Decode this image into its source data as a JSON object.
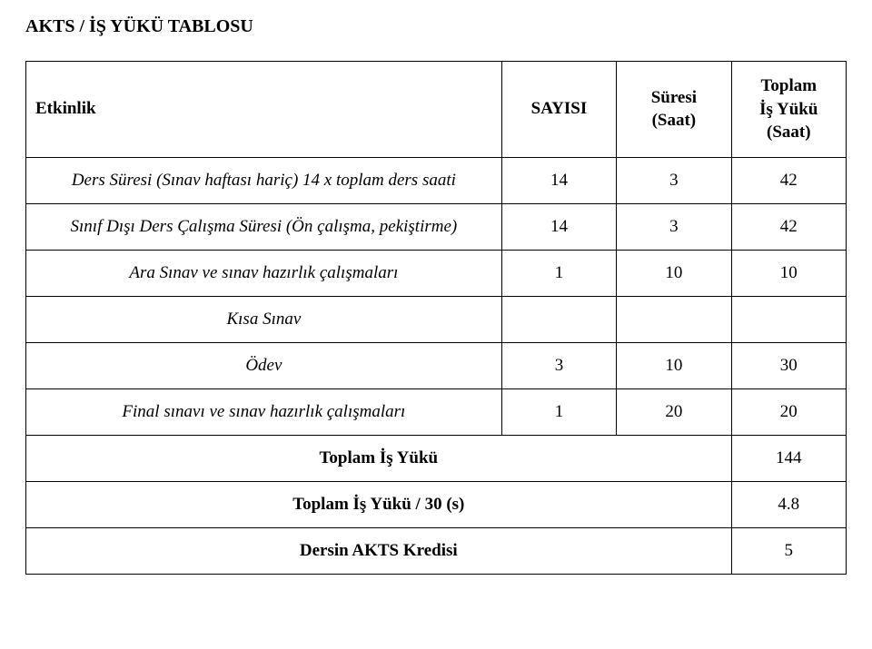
{
  "title": "AKTS / İŞ YÜKÜ TABLOSU",
  "headers": {
    "activity": "Etkinlik",
    "count": "SAYISI",
    "duration_line1": "Süresi",
    "duration_line2": "(Saat)",
    "total_line1": "Toplam",
    "total_line2": "İş Yükü",
    "total_line3": "(Saat)"
  },
  "rows": [
    {
      "activity": "Ders Süresi (Sınav haftası hariç) 14 x toplam ders saati",
      "count": "14",
      "duration": "3",
      "total": "42"
    },
    {
      "activity": "Sınıf Dışı Ders Çalışma Süresi (Ön çalışma, pekiştirme)",
      "count": "14",
      "duration": "3",
      "total": "42"
    },
    {
      "activity": "Ara Sınav ve sınav hazırlık çalışmaları",
      "count": "1",
      "duration": "10",
      "total": "10"
    },
    {
      "activity": "Kısa Sınav",
      "count": "",
      "duration": "",
      "total": ""
    },
    {
      "activity": "Ödev",
      "count": "3",
      "duration": "10",
      "total": "30"
    },
    {
      "activity": "Final sınavı ve sınav hazırlık çalışmaları",
      "count": "1",
      "duration": "20",
      "total": "20"
    }
  ],
  "totals": {
    "workload_label": "Toplam İş Yükü",
    "workload_value": "144",
    "per30_label": "Toplam İş Yükü / 30 (s)",
    "per30_value": "4.8",
    "credit_label": "Dersin AKTS Kredisi",
    "credit_value": "5"
  },
  "colors": {
    "text": "#000000",
    "border": "#000000",
    "background": "#ffffff"
  }
}
